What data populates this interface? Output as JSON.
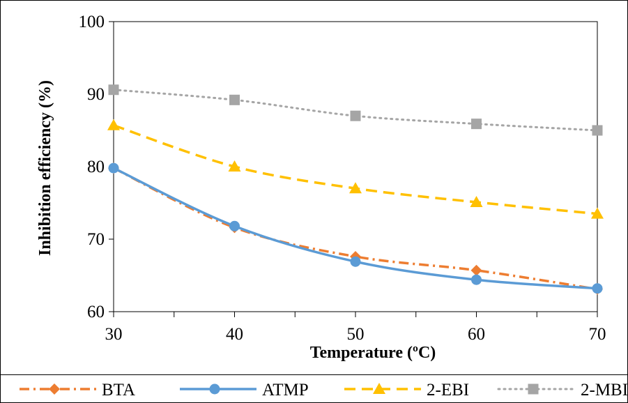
{
  "chart_data": {
    "type": "line",
    "xlabel": "Temperature (ºC)",
    "ylabel": "Inhibition efficiency (%)",
    "x": [
      30,
      40,
      50,
      60,
      70
    ],
    "x_ticks": [
      30,
      40,
      50,
      60,
      70
    ],
    "ylim": [
      60,
      100
    ],
    "y_ticks": [
      60,
      70,
      80,
      90,
      100
    ],
    "grid": false,
    "legend_position": "bottom",
    "series": [
      {
        "name": "BTA",
        "values": [
          79.8,
          71.6,
          67.6,
          65.7,
          63.1
        ],
        "color": "#ED7D31",
        "line_style": "dash-dot",
        "marker": "diamond"
      },
      {
        "name": "ATMP",
        "values": [
          79.8,
          71.8,
          66.9,
          64.4,
          63.2
        ],
        "color": "#5B9BD5",
        "line_style": "solid",
        "marker": "circle"
      },
      {
        "name": "2-EBI",
        "values": [
          85.7,
          80.0,
          77.0,
          75.1,
          73.5
        ],
        "color": "#FFC000",
        "line_style": "dashed",
        "marker": "triangle"
      },
      {
        "name": "2-MBI",
        "values": [
          90.6,
          89.2,
          87.0,
          85.9,
          85.0
        ],
        "color": "#A5A5A5",
        "line_style": "dotted",
        "marker": "square"
      }
    ]
  }
}
